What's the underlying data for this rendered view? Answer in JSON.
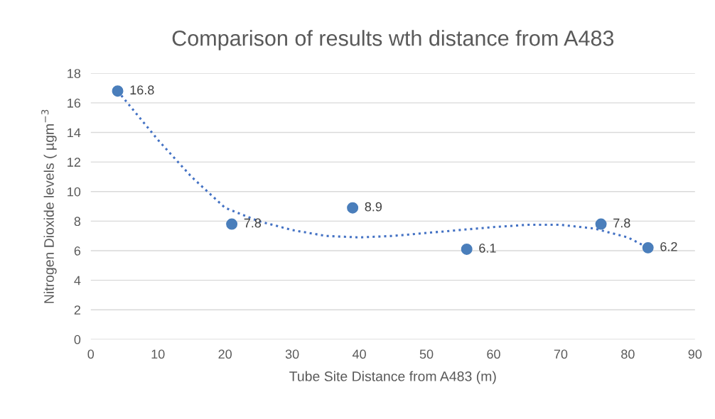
{
  "chart_data": {
    "type": "scatter",
    "title": "Comparison of results wth distance from A483",
    "xlabel": "Tube Site Distance from A483 (m)",
    "ylabel": "Nitrogen Dioxide levels ( µgm$^{−3}$",
    "xlim": [
      0,
      90
    ],
    "xticks": [
      0,
      10,
      20,
      30,
      40,
      50,
      60,
      70,
      80,
      90
    ],
    "ylim": [
      0,
      18
    ],
    "yticks": [
      0,
      2,
      4,
      6,
      8,
      10,
      12,
      14,
      16,
      18
    ],
    "grid": "y",
    "series": [
      {
        "color": "#4a7ebb",
        "marker": "circle",
        "data_labels": true,
        "x": [
          4,
          21,
          39,
          56,
          76,
          83
        ],
        "values": [
          16.8,
          7.8,
          8.9,
          6.1,
          7.8,
          6.2
        ]
      },
      {
        "type": "line",
        "color": "#4472c4",
        "marker": "none",
        "line_style": "dotted",
        "x": [
          4,
          10,
          15,
          20,
          25,
          30,
          35,
          40,
          45,
          50,
          55,
          60,
          65,
          70,
          75,
          80,
          83
        ],
        "values": [
          16.8,
          13.5,
          11,
          8.9,
          8.0,
          7.4,
          7.0,
          6.9,
          7.0,
          7.2,
          7.4,
          7.6,
          7.75,
          7.75,
          7.5,
          6.9,
          6.2
        ]
      }
    ]
  }
}
